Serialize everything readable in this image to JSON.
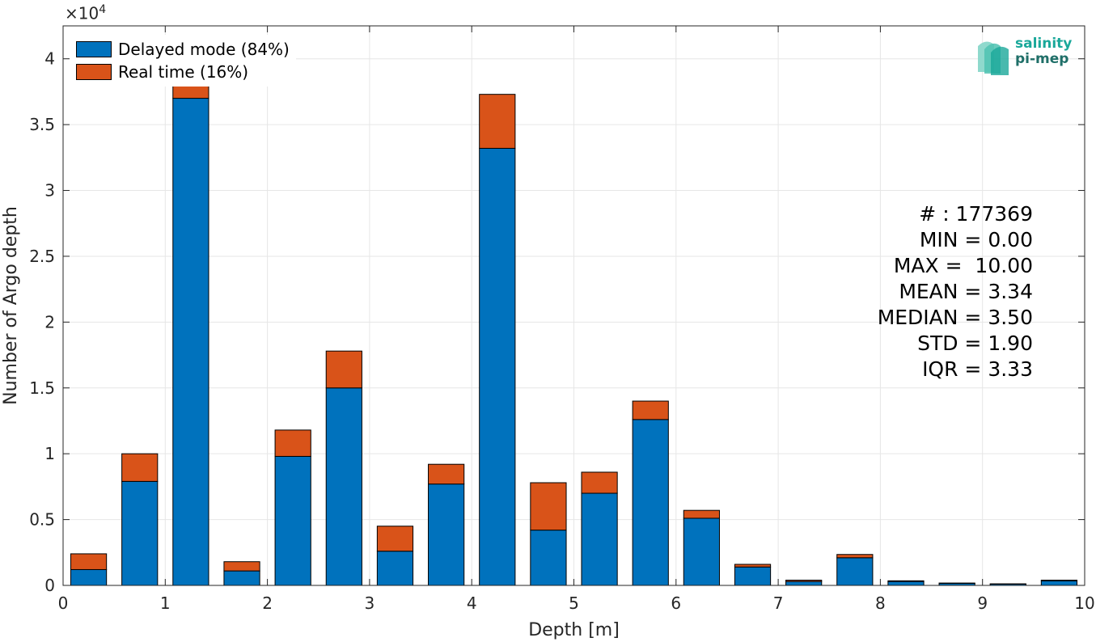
{
  "chart_data": {
    "type": "bar",
    "stacked": true,
    "title": "",
    "xlabel": "Depth [m]",
    "ylabel": "Number of Argo depth",
    "y_exponent_label": "×10",
    "y_exponent_power": "4",
    "xlim": [
      0,
      10
    ],
    "ylim": [
      0,
      42500
    ],
    "x_ticks": [
      "0",
      "1",
      "2",
      "3",
      "4",
      "5",
      "6",
      "7",
      "8",
      "9",
      "10"
    ],
    "y_ticks": [
      "0",
      "0.5",
      "1",
      "1.5",
      "2",
      "2.5",
      "3",
      "3.5",
      "4"
    ],
    "grid": true,
    "legend_position": "top-left",
    "bin_width": 0.5,
    "bar_width": 0.35,
    "x": [
      0.25,
      0.75,
      1.25,
      1.75,
      2.25,
      2.75,
      3.25,
      3.75,
      4.25,
      4.75,
      5.25,
      5.75,
      6.25,
      6.75,
      7.25,
      7.75,
      8.25,
      8.75,
      9.25,
      9.75
    ],
    "series": [
      {
        "name": "Delayed mode (84%)",
        "color": "#0072BD",
        "values": [
          1200,
          7900,
          37000,
          1100,
          9800,
          15000,
          2600,
          7700,
          33200,
          4200,
          7000,
          12600,
          5100,
          1400,
          300,
          2100,
          300,
          150,
          100,
          350
        ]
      },
      {
        "name": "Real time (16%)",
        "color": "#D95319",
        "values": [
          1200,
          2100,
          3800,
          700,
          2000,
          2800,
          1900,
          1500,
          4100,
          3600,
          1600,
          1400,
          600,
          200,
          100,
          250,
          50,
          30,
          20,
          50
        ]
      }
    ]
  },
  "stats": [
    "# : 177369",
    "MIN = 0.00",
    "MAX =  10.00",
    "MEAN = 3.34",
    "MEDIAN = 3.50",
    "STD = 1.90",
    "IQR = 3.33"
  ],
  "logo": {
    "line1": "salinity",
    "line2": "pi-mep"
  }
}
